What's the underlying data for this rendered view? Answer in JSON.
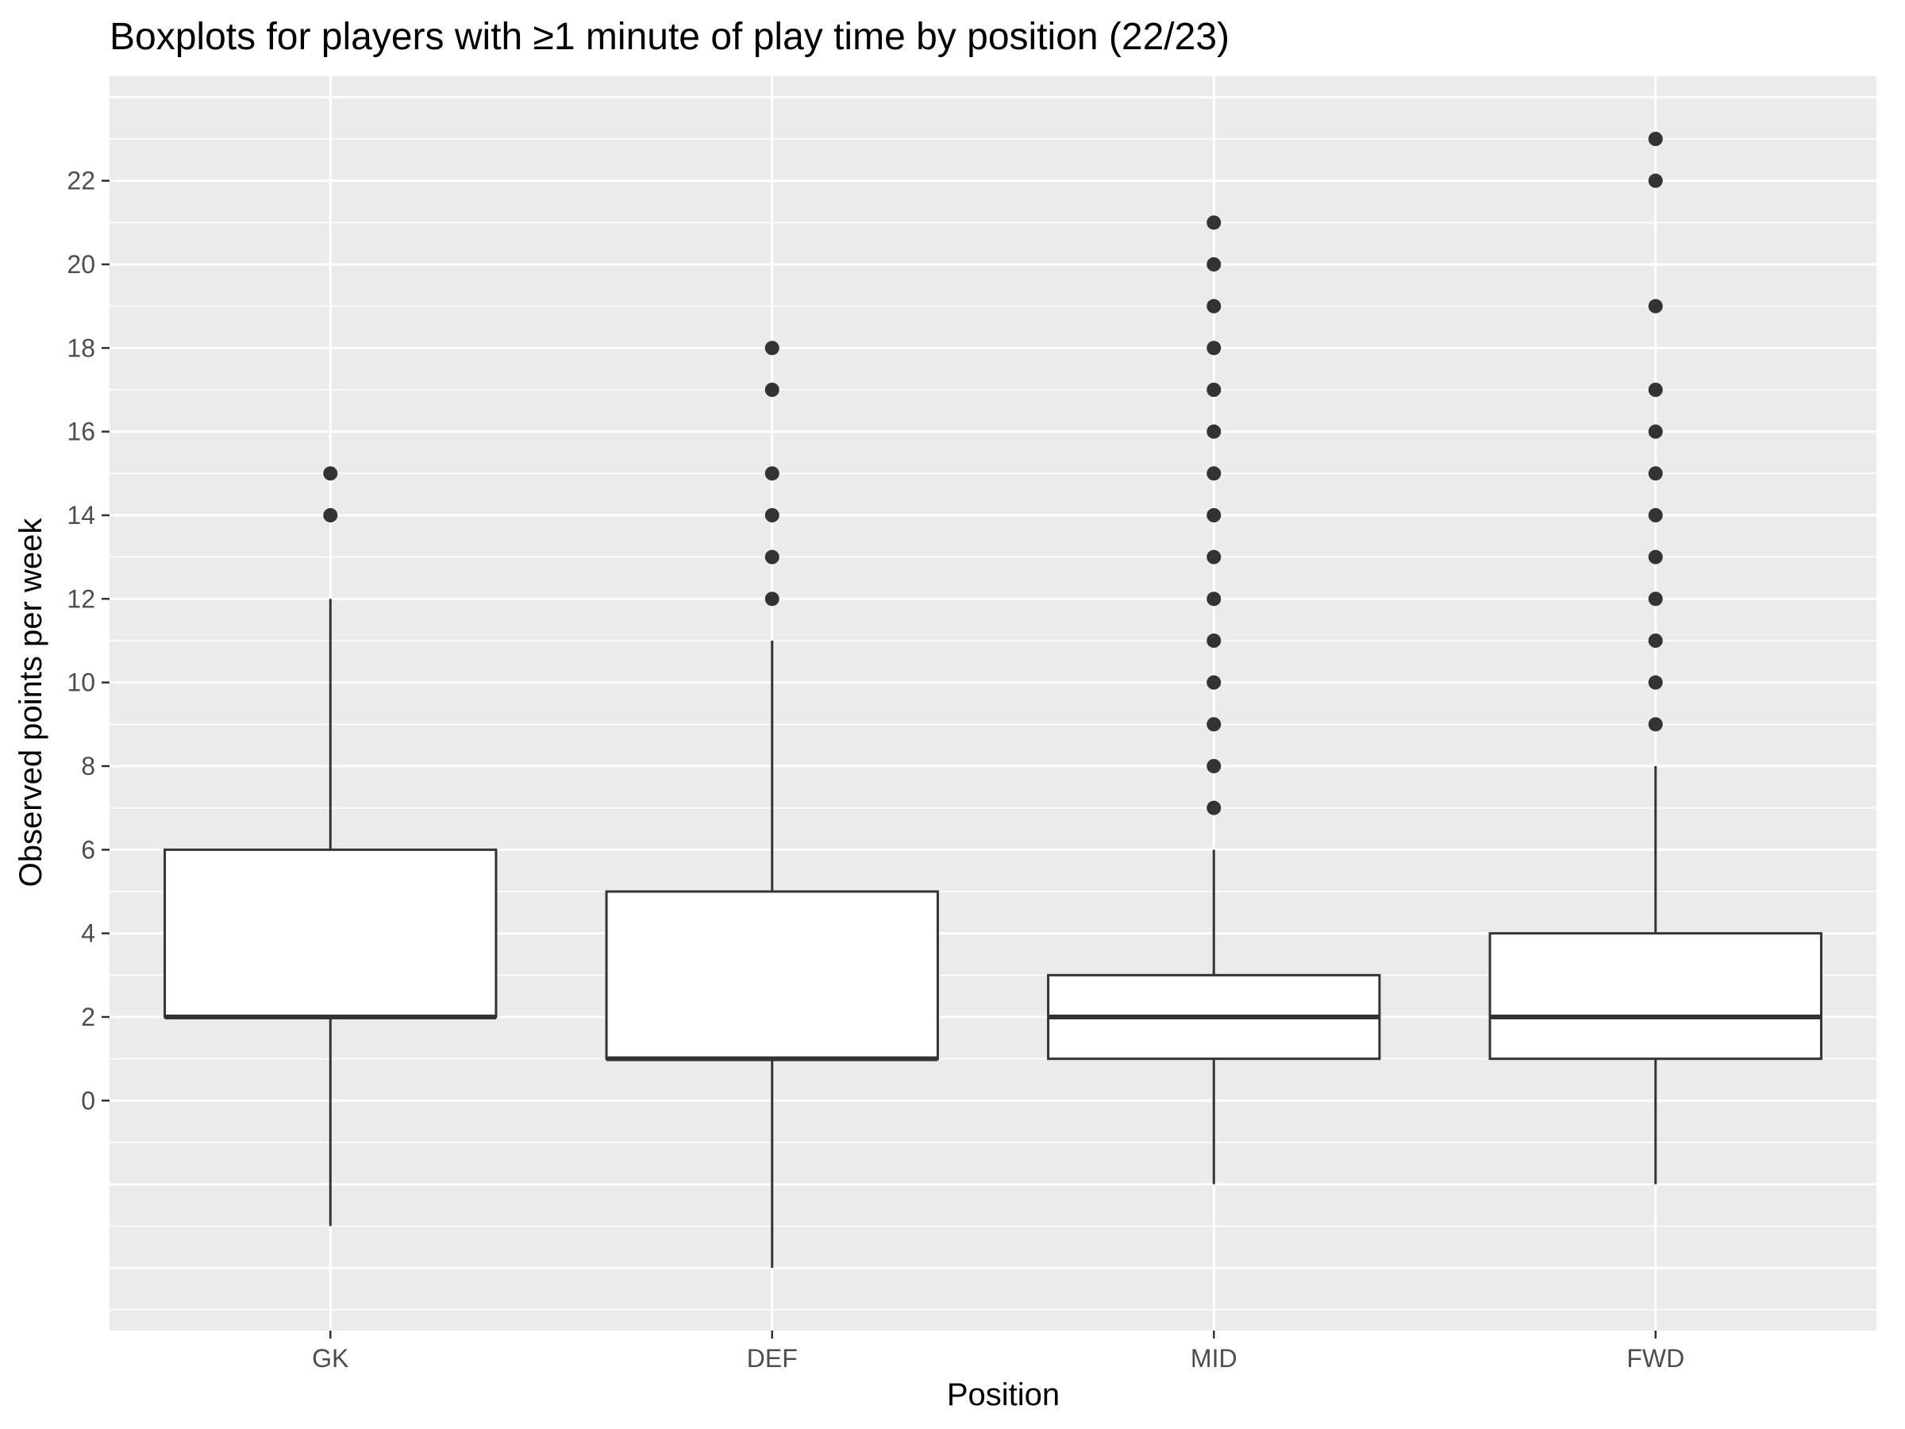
{
  "chart_data": {
    "type": "boxplot",
    "title": "Boxplots for players with ≥1 minute of play time by position (22/23)",
    "xlabel": "Position",
    "ylabel": "Observed points per week",
    "ylim": [
      -5.5,
      24.5
    ],
    "yticks": [
      0,
      2,
      4,
      6,
      8,
      10,
      12,
      14,
      16,
      18,
      20,
      22
    ],
    "grid": true,
    "categories": [
      "GK",
      "DEF",
      "MID",
      "FWD"
    ],
    "boxes": [
      {
        "name": "GK",
        "min": -3,
        "q1": 2,
        "median": 2,
        "q3": 6,
        "max": 12,
        "outliers": [
          14,
          15
        ]
      },
      {
        "name": "DEF",
        "min": -4,
        "q1": 1,
        "median": 1,
        "q3": 5,
        "max": 11,
        "outliers": [
          12,
          13,
          14,
          15,
          17,
          18
        ]
      },
      {
        "name": "MID",
        "min": -2,
        "q1": 1,
        "median": 2,
        "q3": 3,
        "max": 6,
        "outliers": [
          7,
          8,
          9,
          10,
          11,
          12,
          13,
          14,
          15,
          16,
          17,
          18,
          19,
          20,
          21
        ]
      },
      {
        "name": "FWD",
        "min": -2,
        "q1": 1,
        "median": 2,
        "q3": 4,
        "max": 8,
        "outliers": [
          9,
          10,
          11,
          12,
          13,
          14,
          15,
          16,
          17,
          19,
          22,
          23
        ]
      }
    ],
    "colors": {
      "panel": "#ebebeb",
      "grid": "#ffffff",
      "box_fill": "#ffffff",
      "box_line": "#333333",
      "point": "#333333",
      "tick_text": "#4d4d4d"
    }
  }
}
